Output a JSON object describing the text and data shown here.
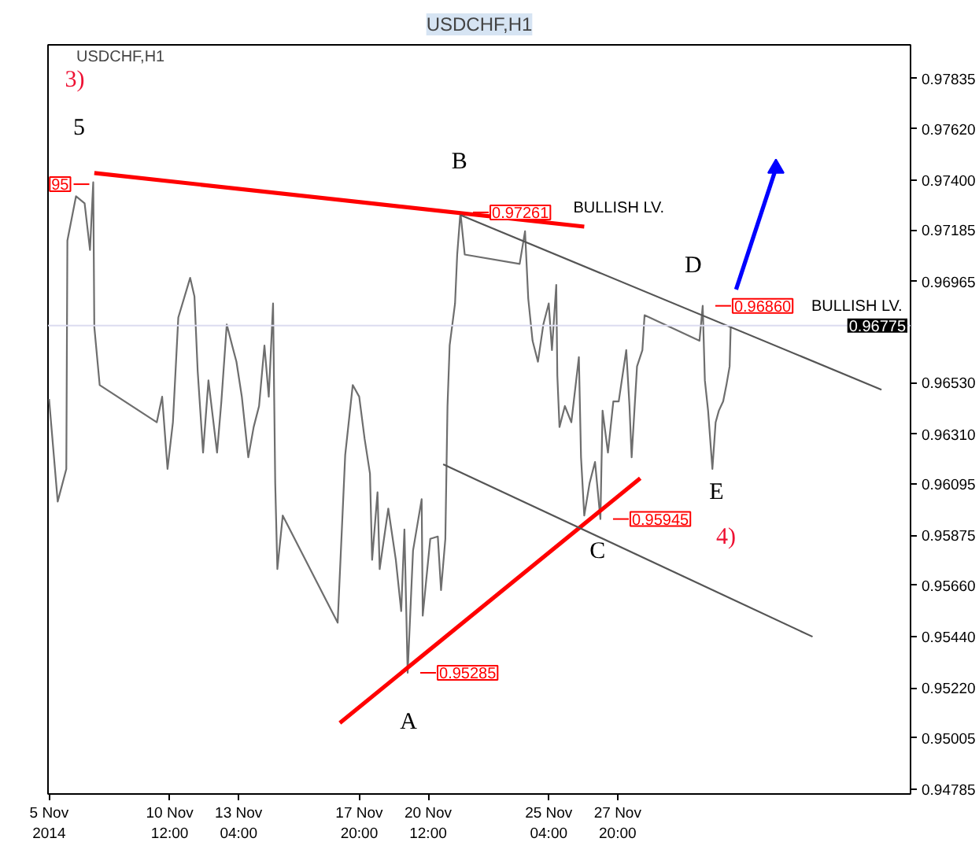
{
  "chart_data": {
    "type": "line",
    "title": "USDCHF,H1",
    "subtitle": "USDCHF,H1",
    "xlim": [
      "2014-11-05T19:00",
      "2014-12-09T04:00"
    ],
    "xticks": [
      {
        "value": "2014-11-05T20:00",
        "label": "5 Nov 2014"
      },
      {
        "value": "2014-11-10T12:00",
        "label": "10 Nov 12:00"
      },
      {
        "value": "2014-11-13T04:00",
        "label": "13 Nov 04:00"
      },
      {
        "value": "2014-11-17T20:00",
        "label": "17 Nov 20:00"
      },
      {
        "value": "2014-11-20T12:00",
        "label": "20 Nov 12:00"
      },
      {
        "value": "2014-11-25T04:00",
        "label": "25 Nov 04:00"
      },
      {
        "value": "2014-11-27T20:00",
        "label": "27 Nov 20:00"
      }
    ],
    "ylim": [
      0.94765,
      0.9798
    ],
    "yticks": [
      0.94785,
      0.95005,
      {
        "value": 0.9522,
        "label": "0.95220"
      },
      {
        "value": 0.9544,
        "label": "0.95440"
      },
      {
        "value": 0.9566,
        "label": "0.95660"
      },
      0.95875,
      0.96095,
      {
        "value": 0.9631,
        "label": "0.96310"
      },
      {
        "value": 0.9653,
        "label": "0.96530"
      },
      0.96965,
      0.97185,
      {
        "value": 0.974,
        "label": "0.97400"
      },
      {
        "value": 0.9762,
        "label": "0.97620"
      },
      0.97835
    ],
    "grid": false,
    "series": [
      {
        "color": "#6e6e6e",
        "x": [
          "2014-11-05T20:00",
          "2014-11-06T04:00",
          "2014-11-06T12:00",
          "2014-11-06T13:00",
          "2014-11-06T21:00",
          "2014-11-07T05:00",
          "2014-11-07T10:00",
          "2014-11-07T13:00",
          "2014-11-07T14:00",
          "2014-11-07T19:00",
          "2014-11-10T00:00",
          "2014-11-10T05:00",
          "2014-11-10T10:00",
          "2014-11-10T15:00",
          "2014-11-10T20:00",
          "2014-11-11T07:00",
          "2014-11-11T11:00",
          "2014-11-11T14:00",
          "2014-11-11T19:00",
          "2014-11-12T00:00",
          "2014-11-12T08:00",
          "2014-11-12T12:00",
          "2014-11-12T17:00",
          "2014-11-12T22:00",
          "2014-11-13T02:00",
          "2014-11-13T07:00",
          "2014-11-13T13:00",
          "2014-11-13T18:00",
          "2014-11-13T23:00",
          "2014-11-14T04:00",
          "2014-11-14T08:00",
          "2014-11-14T12:00",
          "2014-11-14T14:00",
          "2014-11-14T16:00",
          "2014-11-14T21:00",
          "2014-11-17T00:00",
          "2014-11-17T07:00",
          "2014-11-17T14:00",
          "2014-11-17T20:00",
          "2014-11-18T01:00",
          "2014-11-18T06:00",
          "2014-11-18T08:00",
          "2014-11-18T13:00",
          "2014-11-18T15:00",
          "2014-11-18T23:00",
          "2014-11-19T06:00",
          "2014-11-19T11:00",
          "2014-11-19T14:00",
          "2014-11-19T17:00",
          "2014-11-19T22:00",
          "2014-11-20T06:00",
          "2014-11-20T07:00",
          "2014-11-20T14:00",
          "2014-11-20T21:00",
          "2014-11-21T00:00",
          "2014-11-21T04:00",
          "2014-11-21T06:00",
          "2014-11-21T08:00",
          "2014-11-21T13:00",
          "2014-11-21T15:00",
          "2014-11-21T18:00",
          "2014-11-21T22:00",
          "2014-11-24T01:00",
          "2014-11-24T06:00",
          "2014-11-24T09:00",
          "2014-11-24T13:00",
          "2014-11-24T18:00",
          "2014-11-24T23:00",
          "2014-11-25T04:00",
          "2014-11-25T07:00",
          "2014-11-25T11:00",
          "2014-11-25T12:00",
          "2014-11-25T14:00",
          "2014-11-25T19:00",
          "2014-11-26T01:00",
          "2014-11-26T08:00",
          "2014-11-26T10:00",
          "2014-11-26T13:00",
          "2014-11-26T18:00",
          "2014-11-26T23:00",
          "2014-11-27T04:00",
          "2014-11-27T06:00",
          "2014-11-27T11:00",
          "2014-11-27T16:00",
          "2014-11-27T21:00",
          "2014-11-28T04:00",
          "2014-11-28T07:00",
          "2014-11-28T09:00",
          "2014-11-28T14:00",
          "2014-11-28T19:00",
          "2014-11-28T21:00",
          "2014-12-01T00:00",
          "2014-12-01T03:00",
          "2014-12-01T05:00",
          "2014-12-01T08:00",
          "2014-12-01T12:00",
          "2014-12-01T15:00",
          "2014-12-01T18:00",
          "2014-12-01T22:00",
          "2014-12-02T01:00",
          "2014-12-02T04:00",
          "2014-12-02T05:00"
        ],
        "values": [
          0.9646,
          0.9602,
          0.9616,
          0.9714,
          0.9733,
          0.973,
          0.971,
          0.9739,
          0.9677,
          0.9652,
          0.9636,
          0.9647,
          0.9616,
          0.9636,
          0.9681,
          0.9698,
          0.969,
          0.9658,
          0.9623,
          0.9654,
          0.9623,
          0.9645,
          0.9678,
          0.9669,
          0.9662,
          0.9647,
          0.9621,
          0.9634,
          0.9643,
          0.9669,
          0.9647,
          0.9687,
          0.961,
          0.9573,
          0.9596,
          0.955,
          0.9622,
          0.9652,
          0.9647,
          0.9629,
          0.9614,
          0.9577,
          0.9606,
          0.9573,
          0.9599,
          0.9577,
          0.9555,
          0.959,
          0.95285,
          0.9581,
          0.9603,
          0.9553,
          0.9586,
          0.9587,
          0.9564,
          0.9586,
          0.9643,
          0.9669,
          0.9687,
          0.9708,
          0.97261,
          0.9708,
          0.9704,
          0.9718,
          0.9689,
          0.9671,
          0.9662,
          0.9678,
          0.9687,
          0.9667,
          0.9695,
          0.9656,
          0.9634,
          0.9643,
          0.9636,
          0.9664,
          0.9621,
          0.9596,
          0.961,
          0.9619,
          0.95945,
          0.9641,
          0.9623,
          0.9645,
          0.9645,
          0.9667,
          0.9643,
          0.9621,
          0.966,
          0.9667,
          0.9682,
          0.9671,
          0.9686,
          0.9654,
          0.9641,
          0.9616,
          0.9636,
          0.9641,
          0.9645,
          0.9652,
          0.966,
          0.9677
        ],
        "value_labels": [
          null,
          null,
          null,
          null,
          null,
          null,
          null,
          null,
          null,
          null,
          null,
          null,
          null,
          null,
          null,
          null,
          null,
          null,
          null,
          null,
          null,
          null,
          null,
          null,
          null,
          null,
          null,
          null,
          null,
          null,
          null,
          null,
          null,
          null,
          null,
          null,
          null,
          null,
          null,
          null,
          null,
          null,
          null,
          null,
          null,
          null,
          null,
          null,
          "0.95285",
          null,
          null,
          null,
          null,
          null,
          null,
          null,
          null,
          null,
          null,
          null,
          "0.97261",
          null,
          null,
          null,
          null,
          null,
          null,
          null,
          null,
          null,
          null,
          null,
          null,
          null,
          null,
          null,
          null,
          null,
          null,
          null,
          "0.95945",
          null,
          null,
          null,
          null,
          null,
          null,
          null,
          null,
          null,
          null,
          null,
          "0.96860",
          null,
          null,
          null,
          null,
          null,
          null,
          null,
          null,
          null
        ]
      },
      {
        "type": "line",
        "color": "#ff0000",
        "x": [
          "2014-11-07T14:00",
          "2014-11-26T13:00"
        ],
        "values": [
          0.9743,
          0.972
        ]
      },
      {
        "type": "line",
        "color": "#ff0000",
        "x": [
          "2014-11-17T02:00",
          "2014-11-28T17:00"
        ],
        "values": [
          0.9507,
          0.9612
        ]
      },
      {
        "type": "line",
        "color": "#555555",
        "x": [
          "2014-11-21T18:00",
          "2014-12-08T01:00"
        ],
        "values": [
          0.9725,
          0.965
        ]
      },
      {
        "type": "line",
        "color": "#555555",
        "x": [
          "2014-11-21T02:00",
          "2014-12-05T09:00"
        ],
        "values": [
          0.9618,
          0.9544
        ]
      },
      {
        "type": "line",
        "color": "#0000ff",
        "x": [
          "2014-12-02T10:00",
          "2014-12-03T23:00"
        ],
        "values": [
          0.9693,
          0.9745
        ]
      },
      {
        "type": "scatter",
        "color": "#0000ff",
        "x": [
          "2014-12-03T23:00"
        ],
        "values": [
          0.9745
        ],
        "marker": "triangle"
      }
    ],
    "ref_lines": [
      {
        "axis": "y",
        "value": 0.96775,
        "label": "0.96775",
        "color": "#dcdcf0"
      }
    ],
    "annotations": [
      "3)",
      "5",
      "B",
      "D",
      "A",
      "C",
      "E",
      "4)",
      "BULLISH LV.",
      "BULLISH LV.",
      "95"
    ]
  }
}
